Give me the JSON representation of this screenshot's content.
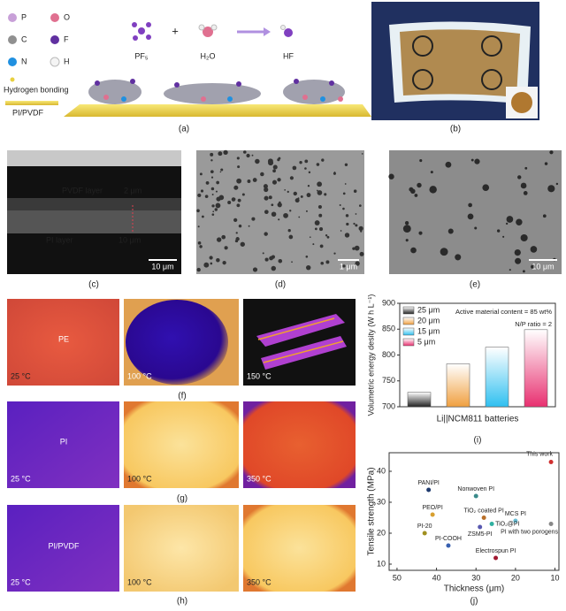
{
  "figure": {
    "panel_a": {
      "legend": [
        "P",
        "O",
        "C",
        "F",
        "N",
        "H",
        "Hydrogen bonding",
        "PI/PVDF"
      ],
      "molecules": [
        "PF₅",
        "H₂O",
        "HF"
      ],
      "label": "(a)"
    },
    "panel_b": {
      "label": "(b)"
    },
    "panel_c": {
      "texts": [
        "PVDF layer",
        "2 μm",
        "PI layer",
        "10 μm"
      ],
      "scale": "10 μm",
      "label": "(c)"
    },
    "panel_d": {
      "scale": "1 μm",
      "label": "(d)"
    },
    "panel_e": {
      "scale": "10 μm",
      "label": "(e)"
    },
    "panel_f": {
      "sample": "PE",
      "temps": [
        "25 °C",
        "100 °C",
        "150 °C"
      ],
      "label": "(f)"
    },
    "panel_g": {
      "sample": "PI",
      "temps": [
        "25 °C",
        "100 °C",
        "350 °C"
      ],
      "label": "(g)"
    },
    "panel_h": {
      "sample": "PI/PVDF",
      "temps": [
        "25 °C",
        "100 °C",
        "350 °C"
      ],
      "label": "(h)"
    }
  },
  "chart_data": [
    {
      "type": "bar",
      "panel_label": "(i)",
      "ylabel": "Volumetric energy desity (W h L⁻¹)",
      "xlabel": "Li||NCM811 batteries",
      "annotations": [
        "Active material content = 85 wt%",
        "N/P ratio = 2"
      ],
      "categories": [
        "25 μm",
        "20 μm",
        "15 μm",
        "5 μm"
      ],
      "values": [
        728,
        783,
        815,
        849
      ],
      "colors": [
        "#222222",
        "#f0a040",
        "#30c0f0",
        "#e83070"
      ],
      "ylim": [
        700,
        900
      ],
      "yticks": [
        700,
        750,
        800,
        850,
        900
      ]
    },
    {
      "type": "scatter",
      "panel_label": "(j)",
      "xlabel": "Thickness (μm)",
      "ylabel": "Tensile strength (MPa)",
      "xlim": [
        52,
        9
      ],
      "ylim": [
        8,
        46
      ],
      "xticks": [
        50,
        40,
        30,
        20,
        10
      ],
      "yticks": [
        10,
        20,
        30,
        40
      ],
      "series": [
        {
          "name": "This work",
          "color": "#d03030",
          "x": [
            11
          ],
          "values": [
            43
          ]
        },
        {
          "name": "PANI/PI",
          "color": "#1f3a6e",
          "x": [
            42
          ],
          "values": [
            34
          ]
        },
        {
          "name": "Nonwoven PI",
          "color": "#3a8a8a",
          "x": [
            30
          ],
          "values": [
            32
          ]
        },
        {
          "name": "PEO/PI",
          "color": "#d8a030",
          "x": [
            41
          ],
          "values": [
            26
          ]
        },
        {
          "name": "TiO₂ coated PI",
          "color": "#b8702a",
          "x": [
            28
          ],
          "values": [
            25
          ]
        },
        {
          "name": "MCS PI",
          "color": "#6ac0d8",
          "x": [
            20
          ],
          "values": [
            24
          ]
        },
        {
          "name": "TiO₂@PI",
          "color": "#30b0a0",
          "x": [
            26
          ],
          "values": [
            23
          ]
        },
        {
          "name": "PI with two porogens",
          "color": "#888888",
          "x": [
            11
          ],
          "values": [
            23
          ]
        },
        {
          "name": "PI-20",
          "color": "#a09020",
          "x": [
            43
          ],
          "values": [
            20
          ]
        },
        {
          "name": "ZSM5-PI",
          "color": "#5858b0",
          "x": [
            29
          ],
          "values": [
            22
          ]
        },
        {
          "name": "PI-COOH",
          "color": "#3860b0",
          "x": [
            37
          ],
          "values": [
            16
          ]
        },
        {
          "name": "Electrospun PI",
          "color": "#a01830",
          "x": [
            25
          ],
          "values": [
            12
          ]
        }
      ]
    }
  ]
}
